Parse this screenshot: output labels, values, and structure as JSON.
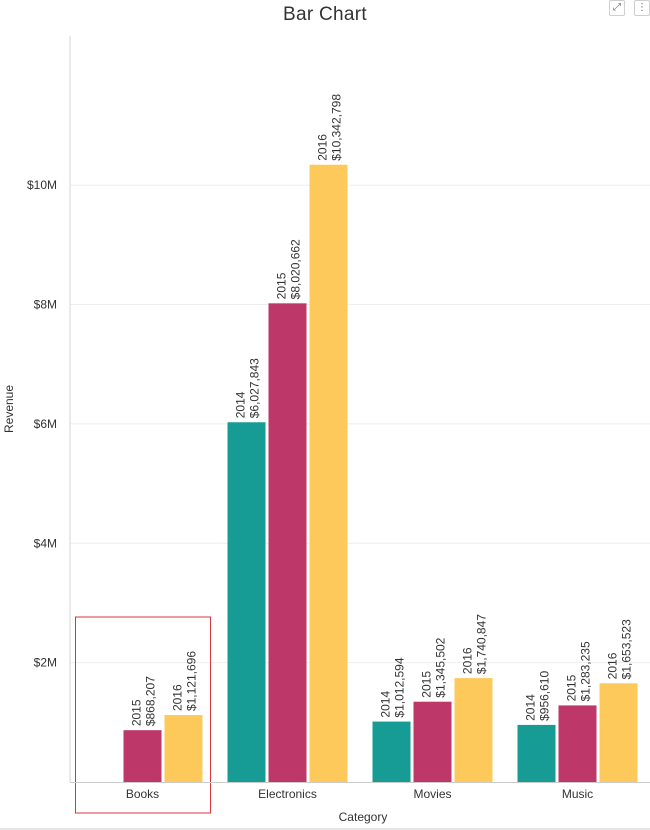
{
  "toolbar": {
    "expand_icon": "expand-icon",
    "menu_icon": "more-vertical-icon"
  },
  "chart_data": {
    "type": "bar",
    "title": "Bar Chart",
    "xlabel": "Category",
    "ylabel": "Revenue",
    "categories": [
      "Books",
      "Electronics",
      "Movies",
      "Music"
    ],
    "series": [
      {
        "name": "2014",
        "color": "#169c94",
        "values": [
          null,
          6027843,
          1012594,
          956610
        ]
      },
      {
        "name": "2015",
        "color": "#bd3869",
        "values": [
          868207,
          8020662,
          1345502,
          1283235
        ]
      },
      {
        "name": "2016",
        "color": "#fdc95b",
        "values": [
          1121696,
          10342798,
          1740847,
          1653523
        ]
      }
    ],
    "data_labels": [
      [
        "",
        "$6,027,843",
        "$1,012,594",
        "$956,610"
      ],
      [
        "$868,207",
        "$8,020,662",
        "$1,345,502",
        "$1,283,235"
      ],
      [
        "$1,121,696",
        "$10,342,798",
        "$1,740,847",
        "$1,653,523"
      ]
    ],
    "ylim": [
      0,
      12500000
    ],
    "yticks": [
      2000000,
      4000000,
      6000000,
      8000000,
      10000000
    ],
    "ytick_labels": [
      "$2M",
      "$4M",
      "$6M",
      "$8M",
      "$10M"
    ],
    "grid": true,
    "legend": "none",
    "highlighted_category": "Books",
    "highlight_color": "#d9363e"
  }
}
